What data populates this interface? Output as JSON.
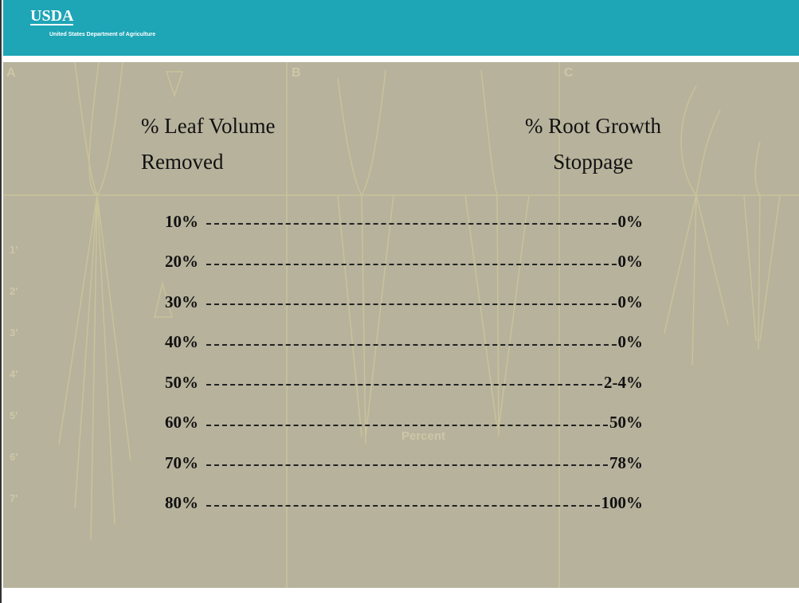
{
  "header": {
    "logo": "USDA",
    "agency": "United States Department of Agriculture"
  },
  "background_labels": {
    "panels": [
      "A",
      "B",
      "C"
    ],
    "axis_word": "Percent",
    "depths": [
      "1'",
      "2'",
      "3'",
      "4'",
      "5'",
      "6'",
      "7'"
    ]
  },
  "table": {
    "left_heading": [
      "% Leaf Volume",
      "Removed"
    ],
    "right_heading": [
      "% Root Growth",
      "Stoppage"
    ],
    "rows": [
      [
        "10%",
        "0%"
      ],
      [
        "20%",
        "0%"
      ],
      [
        "30%",
        "0%"
      ],
      [
        "40%",
        "0%"
      ],
      [
        "50%",
        "2-4%"
      ],
      [
        "60%",
        "50%"
      ],
      [
        "70%",
        "78%"
      ],
      [
        "80%",
        "100%"
      ]
    ]
  }
}
